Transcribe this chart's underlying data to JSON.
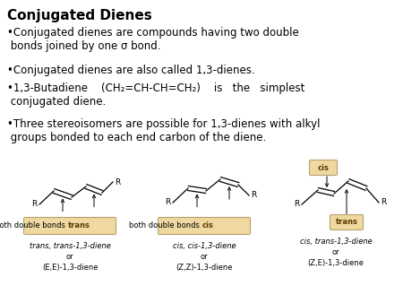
{
  "background_color": "#ffffff",
  "title": "Conjugated Dienes",
  "title_fontsize": 11,
  "bullet_fontsize": 8.5,
  "bullets": [
    "•Conjugated dienes are compounds having two double\n  bonds joined by one σ bond.",
    "•Conjugated dienes are also called 1,3-dienes.",
    "• 1,3-Butadiene   (CH₂=CH-CH=CH₂)   is   the   simplest\n  conjugated diene.",
    "•Three stereoisomers are possible for 1,3-dienes with alkyl\n  groups bonded to each end carbon of the diene."
  ],
  "box_color": "#f0d9a0",
  "box_edge_color": "#b8a070",
  "label1_plain": "both double bonds ",
  "label1_bold": "trans",
  "label2_plain": "both double bonds ",
  "label2_bold": "cis",
  "label3_bold": "trans",
  "label_cis_bold": "cis",
  "sub1_line1": "trans, trans-1,3-diene",
  "sub1_line2": "or",
  "sub1_line3": "(E,E)-1,3-diene",
  "sub2_line1": "cis, cis-1,3-diene",
  "sub2_line2": "or",
  "sub2_line3": "(Z,Z)-1,3-diene",
  "sub3_line1": "cis, trans-1,3-diene",
  "sub3_line2": "or",
  "sub3_line3": "(Z,E)-1,3-diene",
  "struct_fontsize": 6.5,
  "sub_fontsize": 6.0
}
